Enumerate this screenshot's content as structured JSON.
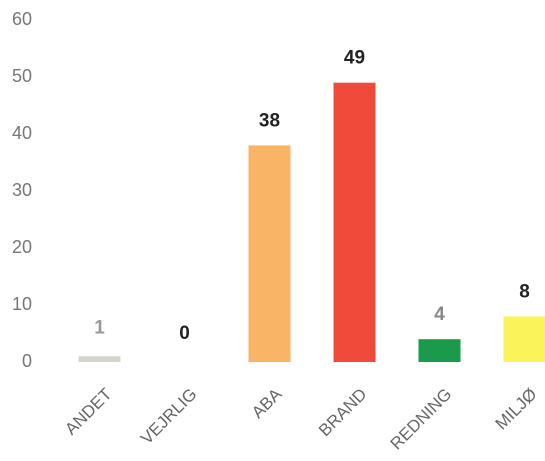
{
  "chart_data": {
    "type": "bar",
    "categories": [
      "ANDET",
      "VEJRLIG",
      "ABA",
      "BRAND",
      "REDNING",
      "MILJØ"
    ],
    "values": [
      1,
      0,
      38,
      49,
      4,
      8
    ],
    "colors": [
      "#d4d4cc",
      "#d4d4cc",
      "#f9b466",
      "#f04b3a",
      "#1b9a4c",
      "#faf35a"
    ],
    "label_colors": [
      "#999999",
      "#222222",
      "#222222",
      "#222222",
      "#888888",
      "#222222"
    ],
    "ylim": [
      0,
      60
    ],
    "yticks": [
      0,
      10,
      20,
      30,
      40,
      50,
      60
    ],
    "grid": false
  }
}
